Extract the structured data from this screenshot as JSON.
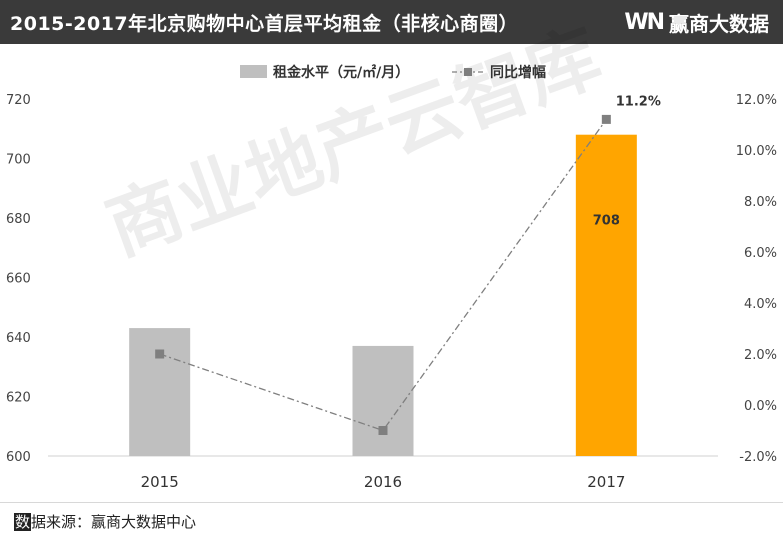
{
  "header": {
    "title": "2015-2017年北京购物中心首层平均租金（非核心商圈）",
    "brand_mark": "WN",
    "brand_name": "赢商大数据"
  },
  "watermark": "商业地产云智库",
  "footer": {
    "source_prefix": "数",
    "source_rest": "据来源：赢商大数据中心"
  },
  "colors": {
    "bar_default": "#bfbfbf",
    "bar_highlight": "#ffa500",
    "line": "#7f7f7f",
    "header_bg": "#3a3a3a"
  },
  "chart_data": {
    "type": "bar",
    "categories": [
      "2015",
      "2016",
      "2017"
    ],
    "series": [
      {
        "name": "租金水平（元/㎡/月）",
        "type": "bar",
        "axis": "left",
        "values": [
          643,
          637,
          708
        ],
        "data_labels": [
          "",
          "",
          "708"
        ]
      },
      {
        "name": "同比增幅",
        "type": "line",
        "axis": "right",
        "values": [
          2.0,
          -1.0,
          11.2
        ],
        "data_labels": [
          "",
          "",
          "11.2%"
        ]
      }
    ],
    "ylim_left": [
      600,
      720
    ],
    "yticks_left": [
      "600",
      "620",
      "640",
      "660",
      "680",
      "700",
      "720"
    ],
    "ylim_right": [
      -2.0,
      12.0
    ],
    "yticks_right": [
      "-2.0%",
      "0.0%",
      "2.0%",
      "4.0%",
      "6.0%",
      "8.0%",
      "10.0%",
      "12.0%"
    ],
    "legend_position": "top",
    "grid": false
  }
}
